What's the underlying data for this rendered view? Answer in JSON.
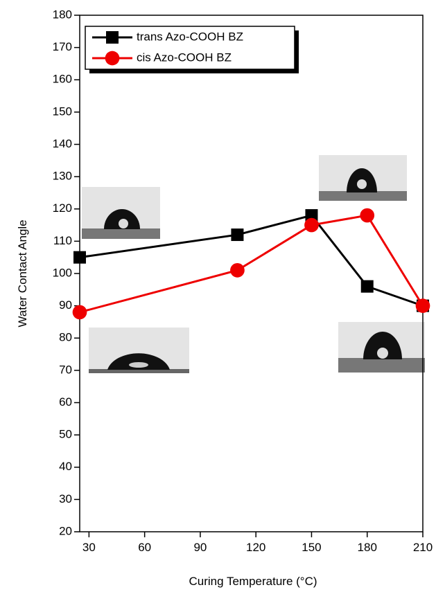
{
  "chart_data": {
    "type": "line",
    "xlabel": "Curing Temperature (°C)",
    "ylabel": "Water Contact Angle",
    "x": [
      25,
      110,
      150,
      180,
      210
    ],
    "series": [
      {
        "name": "trans Azo-COOH BZ",
        "color": "#000000",
        "marker": "square",
        "values": [
          105,
          112,
          118,
          96,
          90
        ]
      },
      {
        "name": "cis Azo-COOH BZ",
        "color": "#ee0000",
        "marker": "circle",
        "values": [
          88,
          101,
          115,
          118,
          90
        ]
      }
    ],
    "xlim": [
      25,
      210
    ],
    "xticks": [
      30,
      60,
      90,
      120,
      150,
      180,
      210
    ],
    "ylim": [
      20,
      180
    ],
    "yticks": [
      20,
      30,
      40,
      50,
      60,
      70,
      80,
      90,
      100,
      110,
      120,
      130,
      140,
      150,
      160,
      170,
      180
    ],
    "legend": "upper left",
    "grid": false
  }
}
